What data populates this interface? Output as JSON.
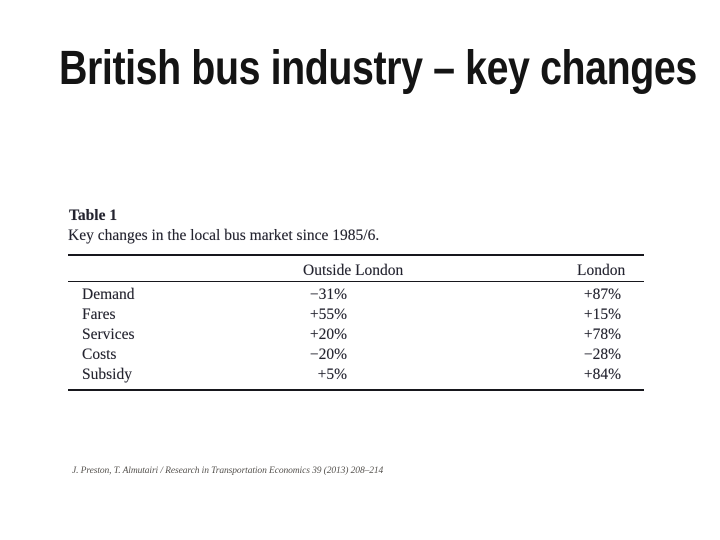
{
  "slide": {
    "title": "British bus industry – key changes"
  },
  "paper_table": {
    "label": "Table 1",
    "caption": "Key changes in the local bus market since 1985/6.",
    "columns": [
      "Outside London",
      "London"
    ],
    "rows": [
      {
        "label": "Demand",
        "outside_london": "−31%",
        "london": "+87%"
      },
      {
        "label": "Fares",
        "outside_london": "+55%",
        "london": "+15%"
      },
      {
        "label": "Services",
        "outside_london": "+20%",
        "london": "+78%"
      },
      {
        "label": "Costs",
        "outside_london": "−20%",
        "london": "−28%"
      },
      {
        "label": "Subsidy",
        "outside_london": "+5%",
        "london": "+84%"
      }
    ]
  },
  "footer": {
    "citation": "J. Preston, T. Almutairi / Research in Transportation Economics 39 (2013) 208–214"
  },
  "colors": {
    "background": "#ffffff",
    "title_text": "#141414",
    "table_ink": "#23232e",
    "rule": "#17171d",
    "citation_text": "#55524e"
  }
}
